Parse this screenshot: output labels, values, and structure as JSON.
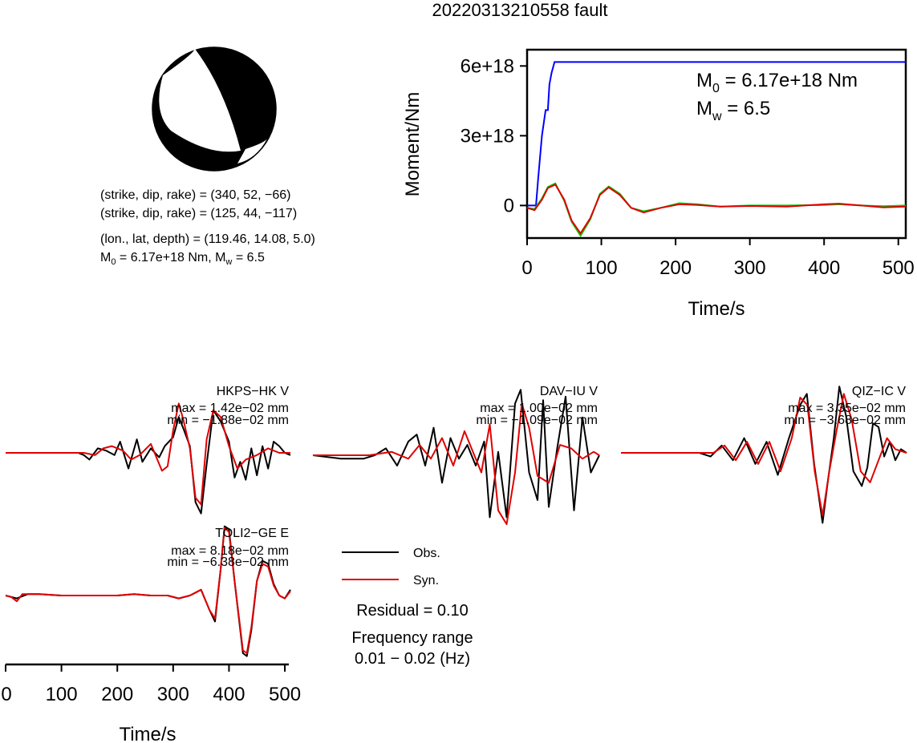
{
  "title": "20220313210558 fault",
  "mechanism": {
    "line1": "(strike, dip, rake) = (340, 52, −66)",
    "line2": "(strike, dip, rake) = (125, 44, −117)",
    "line3": "(lon., lat, depth) = (119.46, 14.08, 5.0)",
    "m0_prefix": "M",
    "m0_sub": "0",
    "m0_value": " = 6.17e+18 Nm, M",
    "mw_sub": "w",
    "mw_value": " = 6.5",
    "colors": {
      "compressional": "#000000",
      "dilatational": "#ffffff"
    }
  },
  "chart_data": [
    {
      "type": "line",
      "ylabel": "Moment/Nm",
      "xlabel": "Time/s",
      "xlim": [
        0,
        510
      ],
      "ylim": [
        -1.4e+18,
        6.7e+18
      ],
      "xticks": [
        0,
        100,
        200,
        300,
        400,
        500
      ],
      "yticks": [
        {
          "value": 6e+18,
          "label": "6e+18"
        },
        {
          "value": 3e+18,
          "label": "3e+18"
        },
        {
          "value": 0,
          "label": "0"
        }
      ],
      "grid": false,
      "annotation": {
        "m0_prefix": "M",
        "m0_sub": "0",
        "m0_value": " = 6.17e+18 Nm",
        "mw_prefix": "M",
        "mw_sub": "w",
        "mw_value": " = 6.5"
      },
      "series": [
        {
          "color": "#0000ff",
          "x": [
            0,
            12,
            15,
            20,
            25,
            28,
            30,
            33,
            37,
            50,
            100,
            200,
            300,
            400,
            510
          ],
          "y": [
            0,
            0,
            1.2e+18,
            3e+18,
            4.1e+18,
            4.1e+18,
            5.2e+18,
            5.7e+18,
            6.17e+18,
            6.17e+18,
            6.17e+18,
            6.17e+18,
            6.17e+18,
            6.17e+18,
            6.17e+18
          ]
        },
        {
          "color": "#00cc00",
          "x": [
            0,
            10,
            20,
            28,
            38,
            50,
            60,
            72,
            85,
            98,
            110,
            125,
            140,
            157,
            180,
            205,
            230,
            260,
            300,
            350,
            400,
            420,
            450,
            480,
            510
          ],
          "y": [
            -1e+17,
            -1.5e+17,
            3e+17,
            8e+17,
            9.5e+17,
            2e+17,
            -7e+17,
            -1.3e+18,
            -6e+17,
            5e+17,
            8.2e+17,
            5e+17,
            -1e+17,
            -2.5e+17,
            -1e+17,
            1e+17,
            5e+16,
            -5e+16,
            0.0,
            0.0,
            2e+16,
            5e+16,
            0.0,
            -3e+16,
            0.0
          ]
        },
        {
          "color": "#e00000",
          "x": [
            0,
            10,
            20,
            28,
            38,
            50,
            60,
            72,
            85,
            98,
            110,
            125,
            140,
            157,
            180,
            205,
            230,
            260,
            300,
            350,
            400,
            420,
            450,
            480,
            510
          ],
          "y": [
            -1e+17,
            -2e+17,
            2.5e+17,
            7.5e+17,
            9e+17,
            2.5e+17,
            -6.5e+17,
            -1.2e+18,
            -5.5e+17,
            4.5e+17,
            7.8e+17,
            4.5e+17,
            -1e+17,
            -3e+17,
            -1e+17,
            5e+16,
            2e+16,
            -5e+16,
            -2e+16,
            -5e+16,
            5e+16,
            8e+16,
            0.0,
            -8e+16,
            -5e+16
          ]
        }
      ]
    },
    {
      "type": "line",
      "station": "HKPS−HK V",
      "max": "max = 1.42e−02 mm",
      "min": "min = −1.88e−02 mm",
      "xlim": [
        0,
        510
      ],
      "series": [
        {
          "name": "Obs.",
          "color": "#000000",
          "x": [
            0,
            60,
            100,
            130,
            140,
            150,
            165,
            180,
            195,
            205,
            220,
            235,
            245,
            260,
            275,
            285,
            300,
            310,
            318,
            330,
            340,
            350,
            360,
            372,
            385,
            400,
            410,
            420,
            430,
            440,
            450,
            460,
            470,
            480,
            490,
            500,
            510
          ],
          "y": [
            0,
            0,
            0,
            0,
            -0.1,
            -0.3,
            0.2,
            0.1,
            -0.1,
            0.5,
            -0.7,
            0.6,
            -0.4,
            0.2,
            -0.2,
            0.3,
            0.7,
            1.6,
            1.1,
            0.3,
            -2.2,
            -2.7,
            -0.5,
            1.9,
            1.4,
            0.5,
            -1.1,
            -0.4,
            -1.2,
            0.2,
            -1.0,
            0.3,
            -0.7,
            0.5,
            0.3,
            0.0,
            -0.1
          ]
        },
        {
          "name": "Syn.",
          "color": "#e00000",
          "x": [
            0,
            60,
            100,
            140,
            160,
            175,
            190,
            210,
            225,
            240,
            260,
            280,
            290,
            300,
            310,
            318,
            330,
            340,
            350,
            360,
            372,
            385,
            400,
            415,
            430,
            450,
            470,
            490,
            510
          ],
          "y": [
            0,
            0,
            0,
            0,
            -0.1,
            0.2,
            0.3,
            0.1,
            -0.3,
            -0.1,
            0.4,
            -0.8,
            -0.6,
            1.0,
            2.2,
            1.5,
            0.2,
            -2.0,
            -2.3,
            0.6,
            1.9,
            1.6,
            0.3,
            -0.7,
            -0.3,
            -0.1,
            0.2,
            0.0,
            0.0
          ]
        }
      ]
    },
    {
      "type": "line",
      "station": "DAV−IU V",
      "max": "max = 1.00e−02 mm",
      "min": "min = −1.09e−02 mm",
      "xlim": [
        0,
        510
      ],
      "series": [
        {
          "name": "Obs.",
          "color": "#000000",
          "x": [
            0,
            50,
            90,
            110,
            130,
            150,
            170,
            185,
            200,
            215,
            230,
            245,
            260,
            275,
            290,
            305,
            315,
            330,
            345,
            360,
            370,
            385,
            400,
            410,
            420,
            435,
            450,
            465,
            480,
            495,
            510
          ],
          "y": [
            0,
            -0.1,
            -0.1,
            0.0,
            0.2,
            -0.3,
            0.4,
            0.6,
            -0.3,
            0.8,
            -0.8,
            0.5,
            -0.1,
            0.3,
            -0.3,
            0.4,
            -1.8,
            0.1,
            -1.8,
            1.5,
            1.9,
            -0.5,
            -1.3,
            1.6,
            -1.5,
            0.2,
            1.7,
            -1.6,
            1.1,
            -0.5,
            0.0
          ]
        },
        {
          "name": "Syn.",
          "color": "#e00000",
          "x": [
            0,
            60,
            100,
            140,
            170,
            190,
            210,
            230,
            250,
            270,
            285,
            300,
            315,
            330,
            345,
            360,
            372,
            385,
            400,
            420,
            440,
            460,
            480,
            500,
            510
          ],
          "y": [
            0,
            0,
            0,
            0.1,
            -0.1,
            0.3,
            -0.1,
            0.5,
            -0.3,
            0.7,
            0.1,
            -0.5,
            0.9,
            -1.6,
            -2.0,
            -0.5,
            1.5,
            0.8,
            -0.6,
            -0.8,
            0.3,
            0.2,
            -0.1,
            0.1,
            0.0
          ]
        }
      ]
    },
    {
      "type": "line",
      "station": "QIZ−IC V",
      "max": "max = 3.35e−02 mm",
      "min": "min = −3.68e−02 mm",
      "xlim": [
        0,
        510
      ],
      "series": [
        {
          "name": "Obs.",
          "color": "#000000",
          "x": [
            0,
            60,
            100,
            140,
            160,
            180,
            200,
            220,
            240,
            260,
            280,
            300,
            320,
            332,
            345,
            360,
            370,
            380,
            390,
            402,
            415,
            430,
            440,
            450,
            460,
            470,
            480,
            490,
            500,
            510
          ],
          "y": [
            0,
            0,
            0,
            0,
            -0.1,
            0.2,
            -0.2,
            0.4,
            -0.3,
            0.3,
            -0.6,
            0.4,
            1.3,
            1.6,
            -0.3,
            -1.9,
            -0.7,
            0.4,
            1.8,
            1.0,
            -0.5,
            -0.9,
            -0.4,
            0.8,
            0.7,
            -0.1,
            0.3,
            -0.2,
            0.1,
            0.0
          ]
        },
        {
          "name": "Syn.",
          "color": "#e00000",
          "x": [
            0,
            60,
            100,
            140,
            165,
            185,
            205,
            225,
            245,
            265,
            285,
            305,
            320,
            333,
            346,
            360,
            372,
            385,
            398,
            412,
            428,
            445,
            460,
            475,
            490,
            510
          ],
          "y": [
            0,
            0,
            0,
            0,
            0.0,
            0.2,
            -0.2,
            0.3,
            -0.3,
            0.3,
            -0.5,
            0.4,
            1.5,
            1.3,
            -0.5,
            -1.7,
            -0.5,
            0.6,
            1.6,
            0.9,
            -0.5,
            -0.8,
            -0.2,
            0.4,
            0.1,
            0.0
          ]
        }
      ]
    },
    {
      "type": "line",
      "station": "TOLI2−GE E",
      "max": "max = 8.18e−02 mm",
      "min": "min = −6.38e−02 mm",
      "xlabel": "Time/s",
      "xlim": [
        0,
        510
      ],
      "xticks": [
        0,
        100,
        200,
        300,
        400,
        500
      ],
      "series": [
        {
          "name": "Obs.",
          "color": "#000000",
          "x": [
            0,
            20,
            40,
            60,
            100,
            150,
            200,
            230,
            260,
            290,
            310,
            330,
            350,
            365,
            375,
            385,
            392,
            400,
            410,
            425,
            432,
            440,
            450,
            460,
            470,
            480,
            490,
            500,
            510
          ],
          "y": [
            0,
            -0.1,
            0.05,
            0.05,
            0,
            0,
            0,
            0.05,
            0.0,
            0.0,
            -0.1,
            0.0,
            0.2,
            -0.5,
            -0.9,
            0.9,
            2.4,
            2.3,
            0.5,
            -2.0,
            -2.1,
            -1.2,
            0.5,
            1.2,
            1.1,
            0.4,
            0.0,
            -0.1,
            0.2
          ]
        },
        {
          "name": "Syn.",
          "color": "#e00000",
          "x": [
            0,
            10,
            20,
            30,
            40,
            60,
            100,
            150,
            200,
            230,
            260,
            290,
            310,
            330,
            350,
            365,
            375,
            385,
            392,
            400,
            410,
            425,
            432,
            440,
            450,
            460,
            470,
            480,
            490,
            500,
            510
          ],
          "y": [
            0,
            -0.05,
            -0.2,
            0.05,
            0.05,
            0.05,
            0,
            0,
            0,
            0.05,
            0.0,
            0.0,
            -0.1,
            0.0,
            0.2,
            -0.5,
            -0.8,
            0.9,
            2.35,
            2.2,
            0.5,
            -1.9,
            -2.0,
            -1.1,
            0.5,
            1.1,
            1.0,
            0.35,
            0.0,
            -0.1,
            0.15
          ]
        }
      ]
    }
  ],
  "legend": {
    "obs": "Obs.",
    "syn": "Syn."
  },
  "residual": "Residual = 0.10",
  "freq_label": "Frequency range",
  "freq_value": "0.01 − 0.02 (Hz)"
}
